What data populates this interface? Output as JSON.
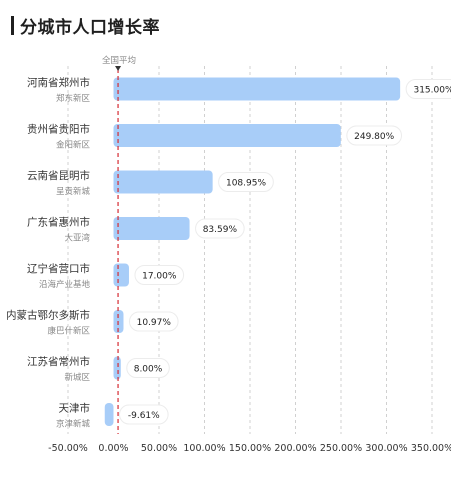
{
  "title": "分城市人口增长率",
  "colors": {
    "bar": "#a8cdf8",
    "avg_line": "#d62b33",
    "grid": "#d0d0d0",
    "label_text": "#333333",
    "sub_text": "#888888",
    "value_text": "#222222",
    "title": "#1f1f1f"
  },
  "chart_data": {
    "type": "bar",
    "orientation": "horizontal",
    "categories": [
      {
        "city": "河南省郑州市",
        "district": "郑东新区"
      },
      {
        "city": "贵州省贵阳市",
        "district": "金阳新区"
      },
      {
        "city": "云南省昆明市",
        "district": "呈贡新城"
      },
      {
        "city": "广东省惠州市",
        "district": "大亚湾"
      },
      {
        "city": "辽宁省营口市",
        "district": "沿海产业基地"
      },
      {
        "city": "内蒙古鄂尔多斯市",
        "district": "康巴什新区"
      },
      {
        "city": "江苏省常州市",
        "district": "新城区"
      },
      {
        "city": "天津市",
        "district": "京津新城"
      }
    ],
    "values": [
      315.0,
      249.8,
      108.95,
      83.59,
      17.0,
      10.97,
      8.0,
      -9.61
    ],
    "value_labels": [
      "315.00%",
      "249.80%",
      "108.95%",
      "83.59%",
      "17.00%",
      "10.97%",
      "8.00%",
      "-9.61%"
    ],
    "xlim": [
      -50,
      350
    ],
    "xticks": [
      -50,
      0,
      50,
      100,
      150,
      200,
      250,
      300,
      350
    ],
    "xtick_labels": [
      "-50.00%",
      "0.00%",
      "50.00%",
      "100.00%",
      "150.00%",
      "200.00%",
      "250.00%",
      "300.00%",
      "350.00%"
    ],
    "reference_line": {
      "label": "全国平均",
      "value": 5
    },
    "grid": true
  }
}
